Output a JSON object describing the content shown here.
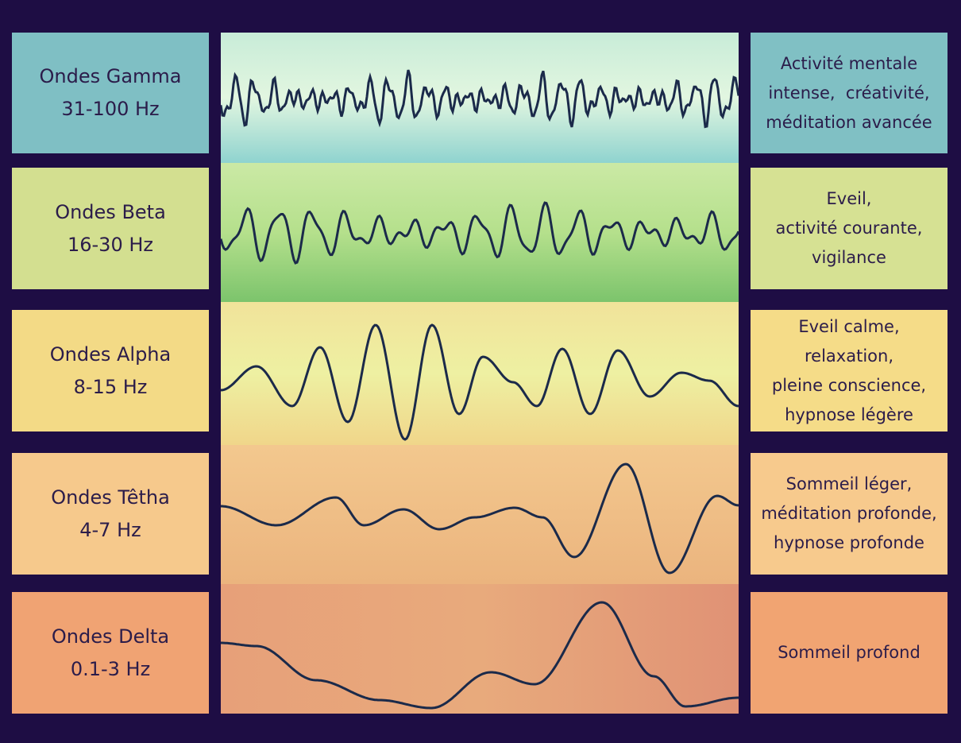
{
  "rows": [
    {
      "name": "Ondes Gamma",
      "range": "31-100 Hz",
      "description": [
        "Activité mentale",
        "intense,  créativité,",
        "méditation avancée"
      ]
    },
    {
      "name": "Ondes Beta",
      "range": "16-30 Hz",
      "description": [
        "Eveil,",
        "activité courante,",
        "vigilance"
      ]
    },
    {
      "name": "Ondes Alpha",
      "range": "8-15 Hz",
      "description": [
        "Eveil calme,",
        "relaxation,",
        "pleine conscience,",
        "hypnose légère"
      ]
    },
    {
      "name": "Ondes Têtha",
      "range": "4-7 Hz",
      "description": [
        "Sommeil léger,",
        "méditation profonde,",
        "hypnose profonde"
      ]
    },
    {
      "name": "Ondes Delta",
      "range": "0.1-3 Hz",
      "description": [
        "Sommeil profond"
      ]
    }
  ]
}
